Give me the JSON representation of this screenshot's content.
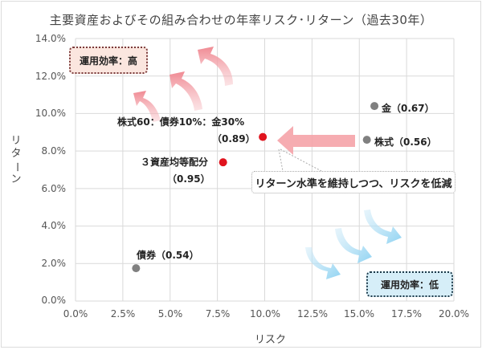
{
  "chart_data": {
    "type": "scatter",
    "title": "主要資産およびその組み合わせの年率リスク･リターン（過去30年）",
    "xlabel": "リスク",
    "ylabel": "リターン",
    "xlim": [
      0,
      20
    ],
    "ylim": [
      0,
      14
    ],
    "grid": true,
    "x_ticks": [
      "0.0%",
      "2.5%",
      "5.0%",
      "7.5%",
      "10.0%",
      "12.5%",
      "15.0%",
      "17.5%",
      "20.0%"
    ],
    "y_ticks": [
      "0.0%",
      "2.0%",
      "4.0%",
      "6.0%",
      "8.0%",
      "10.0%",
      "12.0%",
      "14.0%"
    ],
    "points": [
      {
        "name": "債券",
        "label": "債券（0.54）",
        "risk": 3.2,
        "return": 1.75,
        "ratio": 0.54,
        "color": "#808080"
      },
      {
        "name": "3資産均等配分",
        "label": "３資産均等配分",
        "sublabel": "（0.95）",
        "risk": 7.8,
        "return": 7.4,
        "ratio": 0.95,
        "color": "#e0141e"
      },
      {
        "name": "株式60：債券10%：金30%",
        "label": "株式60：債券10%：金30%",
        "sublabel": "（0.89）",
        "risk": 9.9,
        "return": 8.75,
        "ratio": 0.89,
        "color": "#e0141e"
      },
      {
        "name": "株式",
        "label": "株式（0.56）",
        "risk": 15.4,
        "return": 8.6,
        "ratio": 0.56,
        "color": "#808080"
      },
      {
        "name": "金",
        "label": "金（0.67）",
        "risk": 15.8,
        "return": 10.4,
        "ratio": 0.67,
        "color": "#808080"
      }
    ],
    "annotations": [
      {
        "text": "運用効率：高",
        "position": "top-left",
        "color": "#fbe6df"
      },
      {
        "text": "運用効率：低",
        "position": "bottom-right",
        "color": "#d6eef8"
      },
      {
        "text": "リターン水準を維持しつつ、リスクを低減",
        "position": "center-right"
      }
    ]
  },
  "labels": {
    "bond": "債券（0.54）",
    "equal": "３資産均等配分",
    "equal_ratio": "（0.95）",
    "mix": "株式60：債券10%：金30%",
    "mix_ratio": "（0.89）",
    "stock": "株式（0.56）",
    "gold": "金（0.67）",
    "high": "運用効率：高",
    "low": "運用効率：低",
    "callout": "リターン水準を維持しつつ、リスクを低減"
  },
  "ylabel_chars": [
    "リ",
    "タ",
    "ー",
    "ン"
  ]
}
